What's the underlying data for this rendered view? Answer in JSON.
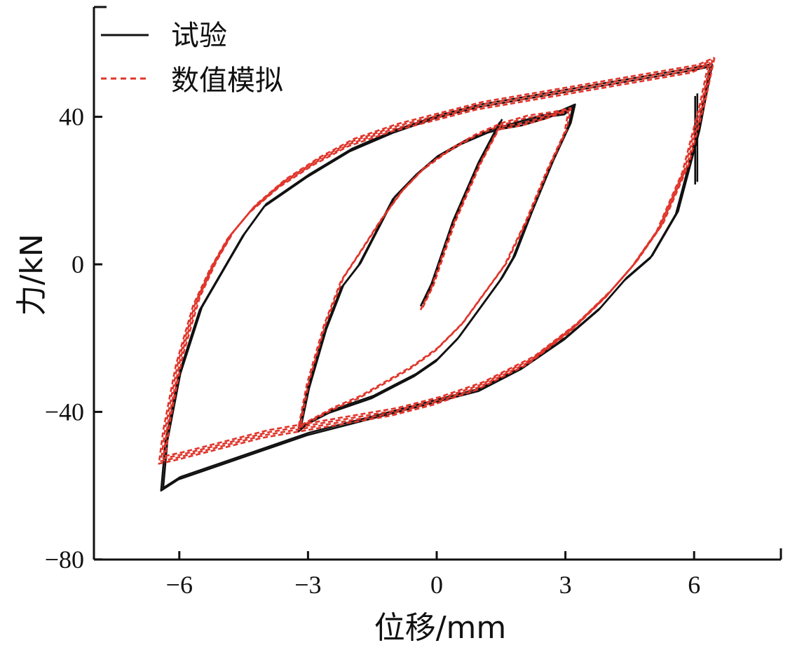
{
  "chart_data": {
    "type": "line",
    "xlabel": "位移/mm",
    "ylabel": "力/kN",
    "xlim": [
      -8,
      8
    ],
    "ylim": [
      -80,
      72
    ],
    "xticks": [
      -6,
      -3,
      0,
      3,
      6
    ],
    "yticks": [
      -80,
      -40,
      0,
      40
    ],
    "xtick_labels": [
      "−6",
      "−3",
      "0",
      "3",
      "6"
    ],
    "ytick_labels": [
      "−80",
      "−40",
      "0",
      "40"
    ],
    "grid": false,
    "legend_position": "top-left",
    "series": [
      {
        "name": "试验",
        "color": "#111111",
        "style": "solid",
        "loops": [
          {
            "x": [
              -0.35,
              -0.1,
              0.4,
              1.0,
              1.5
            ],
            "y": [
              -11,
              -5,
              12,
              28,
              39
            ]
          },
          {
            "x": [
              1.5,
              2.0,
              2.6,
              3.2,
              3.1,
              2.7,
              2.2,
              1.8,
              1.5,
              1.0,
              0.5,
              0.0,
              -0.5,
              -1.0,
              -1.5,
              -2.0,
              -2.5,
              -3.0,
              -3.2,
              -3.0,
              -2.6,
              -2.2,
              -1.8,
              -1.4,
              -1.0,
              -0.5,
              0.0,
              0.6,
              1.2,
              1.8,
              2.4,
              3.0,
              3.2
            ],
            "y": [
              37,
              38,
              40,
              43,
              38,
              28,
              14,
              2,
              -4,
              -12,
              -20,
              -26,
              -30,
              -33,
              -36,
              -38,
              -40,
              -43,
              -45,
              -34,
              -18,
              -6,
              0,
              9,
              18,
              24,
              29,
              33,
              36,
              38,
              40,
              41,
              43
            ]
          },
          {
            "x": [
              6.4,
              6.1,
              5.6,
              5.0,
              4.4,
              3.8,
              3.0,
              2.0,
              1.0,
              0.0,
              -1.0,
              -2.0,
              -3.0,
              -4.0,
              -5.0,
              -6.0,
              -6.4,
              -6.3,
              -6.0,
              -5.5,
              -5.0,
              -4.5,
              -4.0,
              -3.0,
              -2.0,
              -1.0,
              0.0,
              1.0,
              2.0,
              3.0,
              4.0,
              5.0,
              6.0,
              6.4
            ],
            "y": [
              54,
              36,
              14,
              2,
              -4,
              -12,
              -20,
              -28,
              -34,
              -37,
              -40,
              -43,
              -46,
              -50,
              -54,
              -58,
              -61,
              -48,
              -30,
              -12,
              -2,
              8,
              16,
              24,
              31,
              36,
              40,
              43,
              45,
              47,
              49,
              51,
              53,
              54
            ]
          },
          {
            "x": [
              6.05,
              6.05
            ],
            "y": [
              22,
              46
            ]
          }
        ]
      },
      {
        "name": "数值模拟",
        "color": "#e0352b",
        "style": "dashed",
        "loops": [
          {
            "x": [
              -0.35,
              -0.1,
              0.4,
              1.0,
              1.5
            ],
            "y": [
              -12,
              -6,
              11,
              27,
              38
            ]
          },
          {
            "x": [
              1.5,
              2.0,
              2.6,
              3.1,
              3.0,
              2.6,
              2.1,
              1.6,
              1.1,
              0.6,
              0.0,
              -0.6,
              -1.2,
              -1.8,
              -2.4,
              -3.2,
              -3.0,
              -2.6,
              -2.2,
              -1.8,
              -1.3,
              -0.8,
              -0.3,
              0.3,
              0.9,
              1.5,
              2.1,
              2.7,
              3.1
            ],
            "y": [
              37,
              38,
              40,
              42,
              36,
              26,
              12,
              0,
              -8,
              -16,
              -23,
              -28,
              -32,
              -36,
              -39,
              -44,
              -32,
              -16,
              -4,
              3,
              12,
              20,
              26,
              31,
              35,
              38,
              40,
              41,
              42
            ]
          },
          {
            "x": [
              6.4,
              6.2,
              5.8,
              5.2,
              4.6,
              4.0,
              3.2,
              2.2,
              1.0,
              0.0,
              -1.0,
              -2.0,
              -3.0,
              -4.0,
              -5.0,
              -6.0,
              -6.4,
              -6.3,
              -6.0,
              -5.6,
              -5.2,
              -4.8,
              -4.3,
              -3.6,
              -2.8,
              -2.0,
              -1.0,
              0.0,
              1.0,
              2.0,
              3.0,
              4.0,
              5.0,
              6.0,
              6.4
            ],
            "y": [
              55,
              44,
              26,
              10,
              0,
              -8,
              -17,
              -26,
              -33,
              -37,
              -40,
              -42,
              -44,
              -46,
              -49,
              -52,
              -53,
              -44,
              -26,
              -10,
              0,
              8,
              15,
              22,
              28,
              33,
              37,
              40,
              43,
              45,
              47,
              49,
              51,
              53,
              55
            ]
          }
        ]
      }
    ]
  }
}
